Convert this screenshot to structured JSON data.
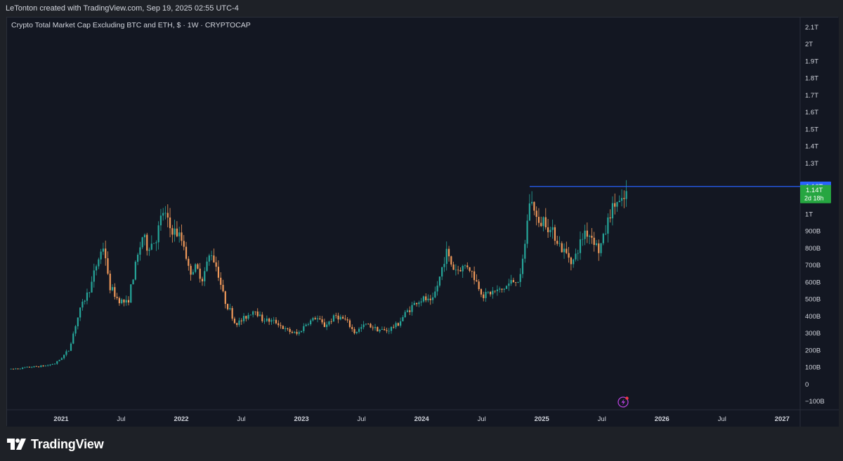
{
  "header": {
    "attribution": "LeTonton created with TradingView.com, Sep 19, 2025 02:55 UTC-4"
  },
  "chart": {
    "title": "Crypto Total Market Cap Excluding BTC and ETH, $ · 1W · CRYPTOCAP"
  },
  "footer": {
    "brand": "TradingView"
  },
  "colors": {
    "up": "#26a69a",
    "down": "#f0995a",
    "level_line": "#2962ff",
    "badge_blue": "#2962ff",
    "badge_green": "#26a641",
    "background": "#131722",
    "grid_text": "#d1d4dc"
  },
  "chart_data": {
    "type": "candlestick",
    "timeframe": "1W",
    "symbol": "CRYPTOCAP",
    "yaxis": {
      "ticks": [
        "2.1T",
        "2T",
        "1.9T",
        "1.8T",
        "1.7T",
        "1.6T",
        "1.5T",
        "1.4T",
        "1.3T",
        "1T",
        "900B",
        "800B",
        "700B",
        "600B",
        "500B",
        "400B",
        "300B",
        "200B",
        "100B",
        "0",
        "−100B"
      ],
      "tick_values": [
        2.1,
        2.0,
        1.9,
        1.8,
        1.7,
        1.6,
        1.5,
        1.4,
        1.3,
        1.0,
        0.9,
        0.8,
        0.7,
        0.6,
        0.5,
        0.4,
        0.3,
        0.2,
        0.1,
        0,
        -0.1
      ],
      "unit": "T",
      "range": [
        -0.13,
        2.13
      ]
    },
    "xaxis": {
      "ticks": [
        "2021",
        "Jul",
        "2022",
        "Jul",
        "2023",
        "Jul",
        "2024",
        "Jul",
        "2025",
        "Jul",
        "2026",
        "Jul",
        "2027"
      ],
      "bold": [
        "2021",
        "2022",
        "2023",
        "2024",
        "2025",
        "2026",
        "2027"
      ],
      "tick_dates": [
        2021.0,
        2021.5,
        2022.0,
        2022.5,
        2023.0,
        2023.5,
        2024.0,
        2024.5,
        2025.0,
        2025.5,
        2026.0,
        2026.5,
        2027.0
      ],
      "range": [
        2020.55,
        2027.15
      ]
    },
    "price_path": [
      [
        "2020-08-01",
        0.085
      ],
      [
        "2020-10-01",
        0.098
      ],
      [
        "2020-11-15",
        0.105
      ],
      [
        "2020-12-15",
        0.12
      ],
      [
        "2021-01-01",
        0.15
      ],
      [
        "2021-01-25",
        0.2
      ],
      [
        "2021-02-15",
        0.35
      ],
      [
        "2021-03-01",
        0.45
      ],
      [
        "2021-04-01",
        0.58
      ],
      [
        "2021-04-20",
        0.72
      ],
      [
        "2021-05-10",
        0.82
      ],
      [
        "2021-05-24",
        0.58
      ],
      [
        "2021-06-20",
        0.5
      ],
      [
        "2021-07-20",
        0.47
      ],
      [
        "2021-08-15",
        0.7
      ],
      [
        "2021-09-05",
        0.87
      ],
      [
        "2021-09-20",
        0.8
      ],
      [
        "2021-10-15",
        0.85
      ],
      [
        "2021-11-08",
        1.02
      ],
      [
        "2021-11-25",
        0.92
      ],
      [
        "2021-12-20",
        0.88
      ],
      [
        "2022-01-10",
        0.82
      ],
      [
        "2022-01-24",
        0.66
      ],
      [
        "2022-02-15",
        0.68
      ],
      [
        "2022-03-05",
        0.62
      ],
      [
        "2022-03-30",
        0.78
      ],
      [
        "2022-04-20",
        0.67
      ],
      [
        "2022-05-09",
        0.5
      ],
      [
        "2022-05-25",
        0.44
      ],
      [
        "2022-06-13",
        0.35
      ],
      [
        "2022-07-01",
        0.37
      ],
      [
        "2022-08-12",
        0.44
      ],
      [
        "2022-09-01",
        0.38
      ],
      [
        "2022-10-20",
        0.36
      ],
      [
        "2022-11-09",
        0.32
      ],
      [
        "2022-12-20",
        0.29
      ],
      [
        "2023-01-14",
        0.35
      ],
      [
        "2023-02-15",
        0.39
      ],
      [
        "2023-03-10",
        0.34
      ],
      [
        "2023-04-15",
        0.4
      ],
      [
        "2023-05-15",
        0.37
      ],
      [
        "2023-06-10",
        0.3
      ],
      [
        "2023-07-15",
        0.35
      ],
      [
        "2023-08-20",
        0.32
      ],
      [
        "2023-09-15",
        0.31
      ],
      [
        "2023-10-20",
        0.35
      ],
      [
        "2023-11-15",
        0.42
      ],
      [
        "2023-12-15",
        0.48
      ],
      [
        "2024-01-10",
        0.5
      ],
      [
        "2024-02-01",
        0.47
      ],
      [
        "2024-02-25",
        0.62
      ],
      [
        "2024-03-14",
        0.78
      ],
      [
        "2024-04-05",
        0.68
      ],
      [
        "2024-04-20",
        0.67
      ],
      [
        "2024-05-20",
        0.7
      ],
      [
        "2024-06-15",
        0.6
      ],
      [
        "2024-07-05",
        0.52
      ],
      [
        "2024-08-05",
        0.54
      ],
      [
        "2024-09-01",
        0.55
      ],
      [
        "2024-10-01",
        0.6
      ],
      [
        "2024-10-28",
        0.62
      ],
      [
        "2024-11-12",
        0.85
      ],
      [
        "2024-11-25",
        1.08
      ],
      [
        "2024-12-10",
        1.03
      ],
      [
        "2024-12-20",
        0.92
      ],
      [
        "2025-01-10",
        0.98
      ],
      [
        "2025-01-25",
        0.9
      ],
      [
        "2025-02-10",
        0.88
      ],
      [
        "2025-03-01",
        0.79
      ],
      [
        "2025-04-07",
        0.72
      ],
      [
        "2025-05-10",
        0.9
      ],
      [
        "2025-06-05",
        0.86
      ],
      [
        "2025-06-22",
        0.78
      ],
      [
        "2025-07-10",
        0.88
      ],
      [
        "2025-07-25",
        1.0
      ],
      [
        "2025-08-14",
        1.07
      ],
      [
        "2025-09-01",
        1.05
      ],
      [
        "2025-09-19",
        1.14
      ]
    ],
    "horizontal_level": {
      "value": 1.16,
      "from_date": "2024-11-25"
    },
    "last_price_badge": {
      "label": "1.16T",
      "value": 1.16
    },
    "current_price_badge": {
      "label": "1.14T",
      "countdown": "2d 18h",
      "value": 1.14
    }
  }
}
